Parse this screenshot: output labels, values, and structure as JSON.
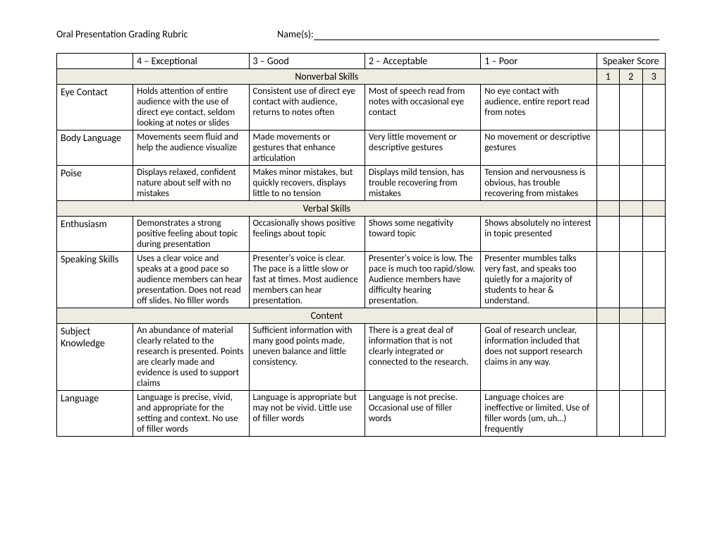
{
  "header": {
    "title": "Oral Presentation Grading Rubric",
    "names_label": "Name(s):"
  },
  "columns": {
    "level4": "4 – Exceptional",
    "level3": "3 – Good",
    "level2": "2 – Acceptable",
    "level1": "1 – Poor",
    "speaker_score": "Speaker Score",
    "score1": "1",
    "score2": "2",
    "score3": "3"
  },
  "sections": [
    {
      "title": "Nonverbal Skills",
      "rows": [
        {
          "criteria": "Eye Contact",
          "l4": "Holds attention of entire audience with the use of direct eye contact, seldom looking at notes or slides",
          "l3": "Consistent use of direct eye contact with audience, returns to notes often",
          "l2": "Most of speech read from notes with occasional eye contact",
          "l1": "No eye contact with audience, entire report read from notes"
        },
        {
          "criteria": "Body Language",
          "l4": "Movements seem fluid and help the audience visualize",
          "l3": "Made movements or gestures that enhance articulation",
          "l2": "Very little movement or descriptive gestures",
          "l1": "No movement or descriptive gestures"
        },
        {
          "criteria": "Poise",
          "l4": "Displays relaxed, confident nature about self with no mistakes",
          "l3": "Makes minor mistakes, but quickly recovers, displays little to no tension",
          "l2": "Displays mild tension, has trouble recovering from mistakes",
          "l1": "Tension and nervousness is obvious, has trouble recovering from mistakes"
        }
      ]
    },
    {
      "title": "Verbal Skills",
      "rows": [
        {
          "criteria": "Enthusiasm",
          "l4": "Demonstrates a strong positive feeling about topic during presentation",
          "l3": "Occasionally shows positive feelings about topic",
          "l2": "Shows some negativity toward topic",
          "l1": "Shows absolutely no interest in topic presented"
        },
        {
          "criteria": "Speaking Skills",
          "l4": "Uses a clear voice and speaks at a good pace so audience members can hear presentation. Does not read off slides. No filler words",
          "l3": "Presenter's voice is clear. The pace is a little slow or fast at times. Most audience members can hear presentation.",
          "l2": "Presenter's voice is low. The pace is much too rapid/slow.\nAudience members have difficulty hearing presentation.",
          "l1": "Presenter mumbles talks very fast, and speaks too quietly for a majority of students to hear & understand."
        }
      ]
    },
    {
      "title": "Content",
      "rows": [
        {
          "criteria": "Subject Knowledge",
          "l4": "An abundance of material clearly related to the research is presented. Points are clearly made and evidence is used to support claims",
          "l3": "Sufficient information with many good points made, uneven balance and little consistency.",
          "l2": "There is a great deal of information that is not clearly integrated or connected to the research.",
          "l1": "Goal of research unclear, information included that does not support research claims in any way."
        },
        {
          "criteria": "Language",
          "l4": "Language is precise, vivid, and appropriate for the setting and context. No use of filler words",
          "l3": "Language is appropriate but may not be vivid. Little use of filler words",
          "l2": "Language is not precise. Occasional use of filler words",
          "l1": "Language choices are ineffective or limited. Use of filler words (um, uh…) frequently"
        }
      ]
    }
  ]
}
